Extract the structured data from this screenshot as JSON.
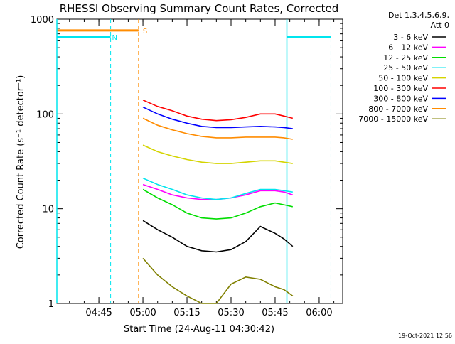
{
  "chart_data": {
    "type": "line",
    "title": "RHESSI Observing Summary Count Rates, Corrected",
    "ylabel": "Corrected Count Rate (s⁻¹ detector⁻¹)",
    "xlabel": "Start Time (24-Aug-11 04:30:42)",
    "y_scale": "log",
    "ylim": [
      1,
      1000
    ],
    "xlim": [
      "04:30:42",
      "06:08:00"
    ],
    "x_ticks": [
      "04:45",
      "05:00",
      "05:15",
      "05:30",
      "05:45",
      "06:00"
    ],
    "y_ticks": [
      "1",
      "10",
      "100",
      "1000"
    ],
    "detector_note": [
      "Det 1,3,4,5,6,9,",
      "Att 0"
    ],
    "footer": "19-Oct-2021 12:56",
    "legend_position": "right",
    "grid": false,
    "x": [
      "04:58",
      "05:00",
      "05:05",
      "05:10",
      "05:15",
      "05:20",
      "05:25",
      "05:30",
      "05:35",
      "05:40",
      "05:45",
      "05:48",
      "05:51"
    ],
    "series": [
      {
        "name": "3 - 6 keV",
        "color": "#000000",
        "values": [
          null,
          7.5,
          6,
          5,
          4,
          3.6,
          3.5,
          3.7,
          4.5,
          6.5,
          5.5,
          4.8,
          4.0
        ]
      },
      {
        "name": "6 - 12 keV",
        "color": "#ff00ff",
        "values": [
          null,
          18,
          16,
          14,
          13,
          12.5,
          12.5,
          13,
          14,
          15.5,
          15.5,
          15,
          14
        ]
      },
      {
        "name": "12 - 25 keV",
        "color": "#00dd00",
        "values": [
          null,
          16,
          13,
          11,
          9,
          8,
          7.8,
          8,
          9,
          10.5,
          11.5,
          11,
          10.5
        ]
      },
      {
        "name": "25 - 50 keV",
        "color": "#00e5ee",
        "values": [
          null,
          21,
          18,
          16,
          14,
          13,
          12.5,
          13,
          14.5,
          16,
          16,
          15.5,
          15
        ]
      },
      {
        "name": "50 - 100 keV",
        "color": "#d4d400",
        "values": [
          null,
          47,
          40,
          36,
          33,
          31,
          30,
          30,
          31,
          32,
          32,
          31,
          30
        ]
      },
      {
        "name": "100 - 300 keV",
        "color": "#ff0000",
        "values": [
          null,
          140,
          120,
          108,
          95,
          88,
          85,
          87,
          92,
          100,
          100,
          95,
          90
        ]
      },
      {
        "name": "300 - 800 keV",
        "color": "#0000ff",
        "values": [
          null,
          118,
          100,
          88,
          80,
          74,
          72,
          72,
          73,
          74,
          73,
          72,
          70
        ]
      },
      {
        "name": "800 - 7000 keV",
        "color": "#ff8c00",
        "values": [
          null,
          90,
          76,
          68,
          62,
          58,
          56,
          56,
          57,
          57,
          57,
          56,
          54
        ]
      },
      {
        "name": "7000 - 15000 keV",
        "color": "#808000",
        "values": [
          null,
          3,
          2,
          1.5,
          1.2,
          1,
          1,
          1.6,
          1.9,
          1.8,
          1.5,
          1.4,
          1.2
        ]
      }
    ],
    "segments": [
      {
        "label": "S",
        "color": "#ff8c00",
        "level": 760,
        "x_start": "04:30:42",
        "x_end": "04:58:30",
        "marker": "04:58:30",
        "label_at": "04:58:30"
      },
      {
        "label": "N",
        "color": "#00e5ee",
        "level": 650,
        "x_start": "04:30:42",
        "x_end": "04:49:00",
        "marker": "04:49:00",
        "label_at": "04:48:00"
      },
      {
        "label": "",
        "color": "#00e5ee",
        "level": 650,
        "x_start": "05:49:00",
        "x_end": "06:04:00",
        "marker": "06:04:00"
      }
    ],
    "solid_markers": [
      {
        "color": "#00e5ee",
        "at": "04:30:42"
      },
      {
        "color": "#00e5ee",
        "at": "05:49:00"
      }
    ]
  }
}
